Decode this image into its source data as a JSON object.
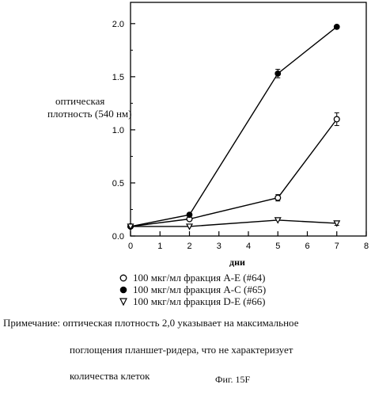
{
  "chart_data": {
    "type": "line",
    "xlabel": "дни",
    "ylabel_line1": "оптическая",
    "ylabel_line2": "плотность (540 нм)",
    "xlim": [
      0,
      8
    ],
    "ylim": [
      0,
      2.0
    ],
    "x_ticks": [
      "0",
      "1",
      "2",
      "3",
      "4",
      "5",
      "6",
      "7",
      "8"
    ],
    "y_ticks": [
      "0.0",
      "0.5",
      "1.0",
      "1.5",
      "2.0"
    ],
    "grid": false,
    "legend_position": "bottom",
    "series": [
      {
        "name": "100 мкг/мл фракция A-E (#64)",
        "marker": "open-circle",
        "x": [
          0,
          2,
          5,
          7
        ],
        "y": [
          0.09,
          0.16,
          0.36,
          1.1
        ],
        "err": [
          0,
          0.01,
          0.03,
          0.06
        ]
      },
      {
        "name": "100 мкг/мл фракция A-C (#65)",
        "marker": "filled-circle",
        "x": [
          0,
          2,
          5,
          7
        ],
        "y": [
          0.09,
          0.2,
          1.53,
          1.97
        ],
        "err": [
          0,
          0,
          0.04,
          0
        ]
      },
      {
        "name": "100 мкг/мл фракция D-E (#66)",
        "marker": "open-triangle",
        "x": [
          0,
          2,
          5,
          7
        ],
        "y": [
          0.09,
          0.09,
          0.15,
          0.12
        ],
        "err": [
          0,
          0,
          0,
          0.02
        ]
      }
    ]
  },
  "note": {
    "line1": "Примечание: оптическая плотность 2,0 указывает на максимальное",
    "line2": "поглощения планшет-ридера, что  не характеризует",
    "line3": "количества клеток"
  },
  "caption": "Фиг. 15F"
}
